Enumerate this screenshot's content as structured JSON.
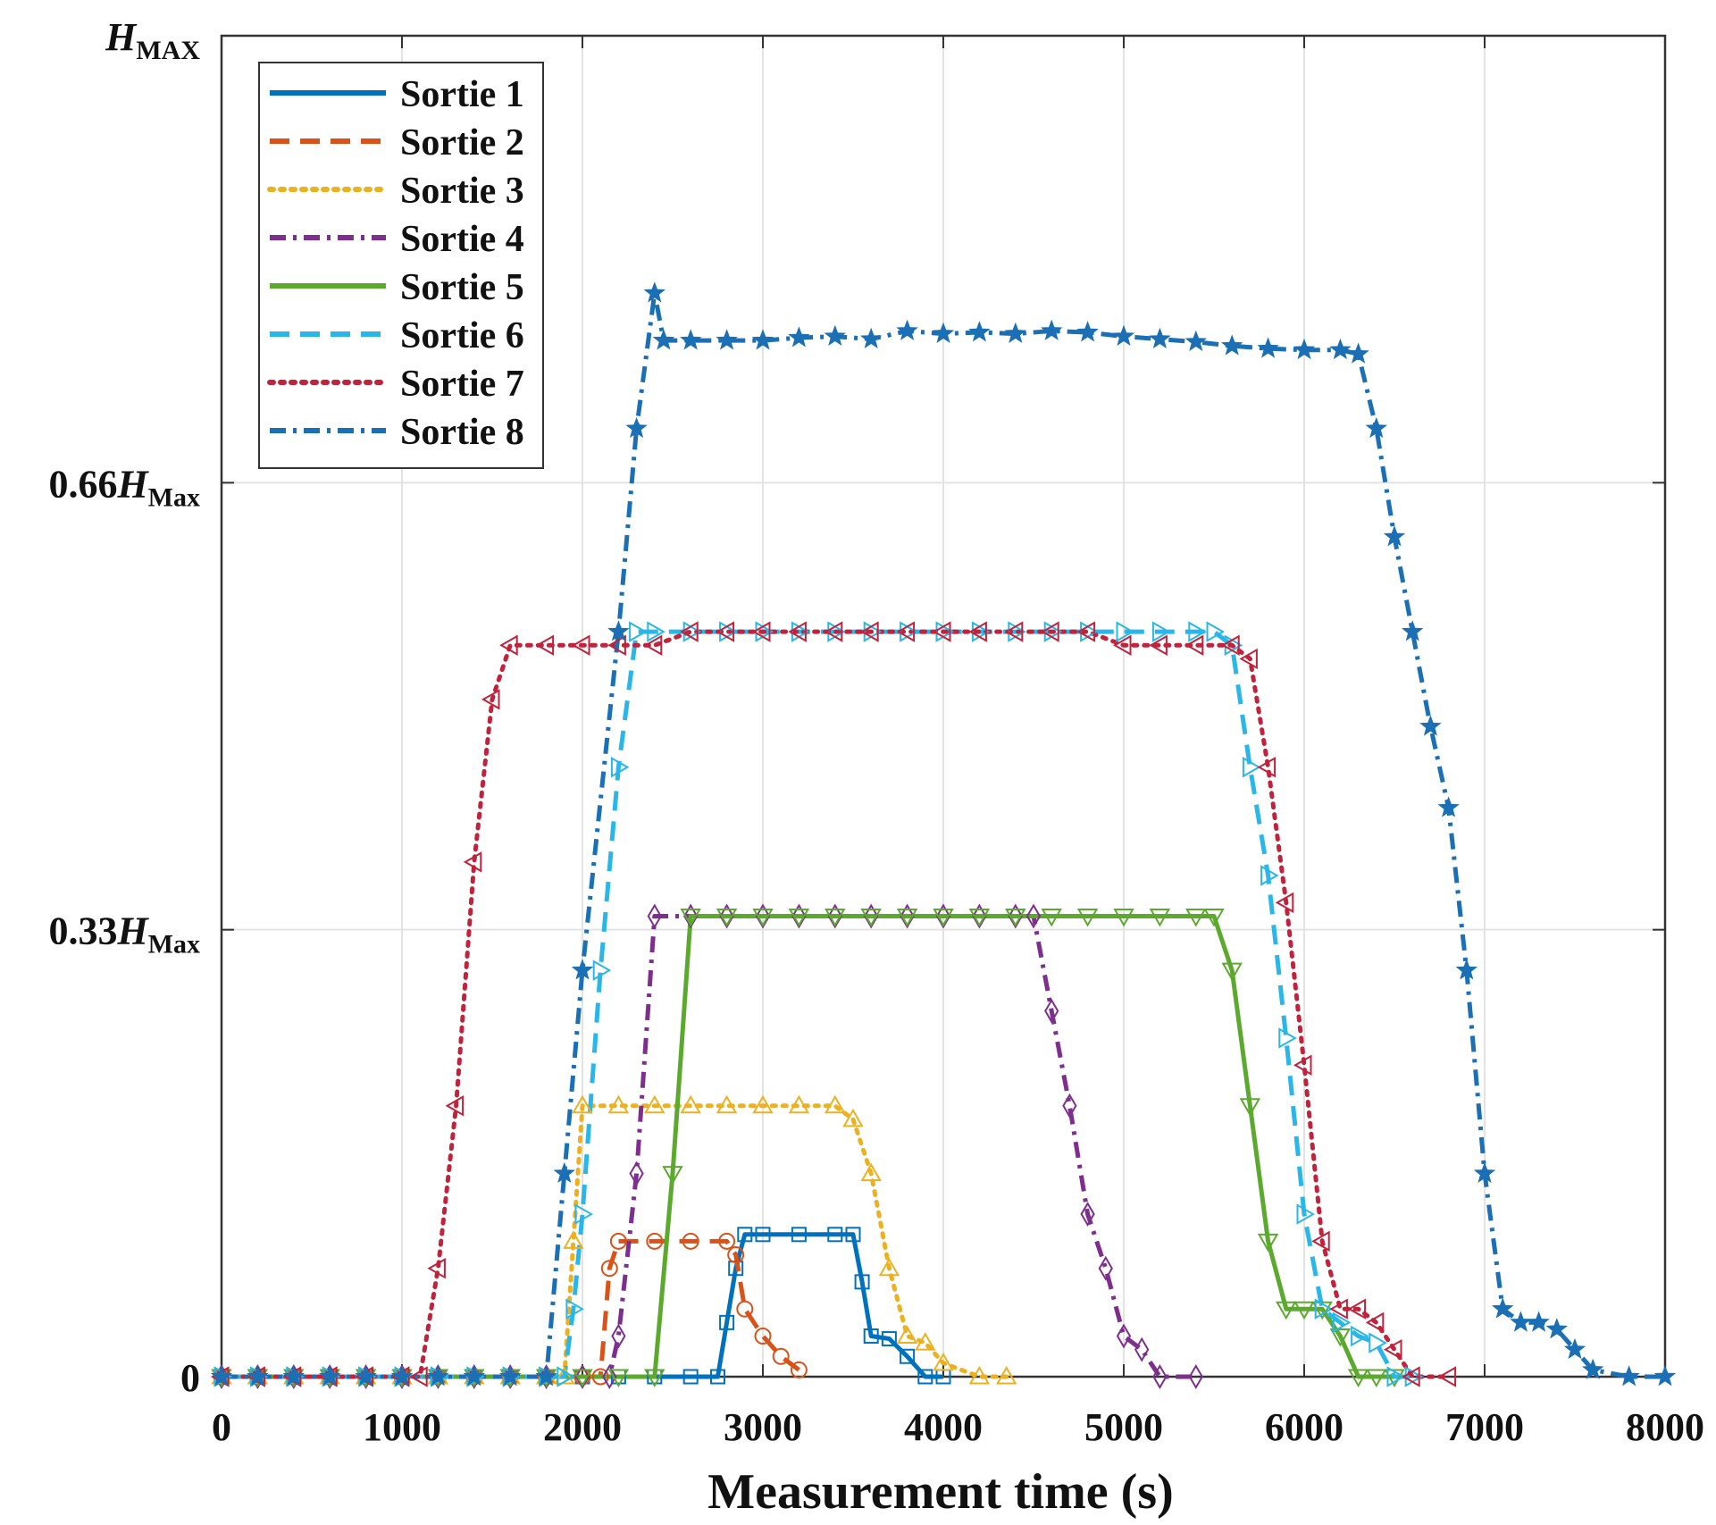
{
  "chart_data": {
    "type": "line",
    "title": "",
    "xlabel": "Measurement time (s)",
    "ylabel": "",
    "xlim": [
      0,
      8000
    ],
    "ylim": [
      0,
      0.99
    ],
    "grid": true,
    "legend_location": "top-left",
    "x_ticks": [
      0,
      1000,
      2000,
      3000,
      4000,
      5000,
      6000,
      7000,
      8000
    ],
    "x_tick_labels": [
      "0",
      "1000",
      "2000",
      "3000",
      "4000",
      "5000",
      "6000",
      "7000",
      "8000"
    ],
    "y_ticks": [
      {
        "value": 0,
        "prefix": "0",
        "symbol": "",
        "sub": ""
      },
      {
        "value": 0.33,
        "prefix": "0.33",
        "symbol": "H",
        "sub": "Max"
      },
      {
        "value": 0.66,
        "prefix": "0.66",
        "symbol": "H",
        "sub": "Max"
      },
      {
        "value": 0.99,
        "prefix": "",
        "symbol": "H",
        "sub": "MAX"
      }
    ],
    "series": [
      {
        "name": "Sortie 1",
        "color": "#0072BD",
        "dash": "solid",
        "marker": "square",
        "x": [
          0,
          200,
          400,
          600,
          800,
          1000,
          1200,
          1400,
          1600,
          1800,
          2000,
          2200,
          2400,
          2600,
          2750,
          2800,
          2850,
          2900,
          3000,
          3200,
          3400,
          3500,
          3550,
          3600,
          3700,
          3800,
          3900,
          4000
        ],
        "y": [
          0,
          0,
          0,
          0,
          0,
          0,
          0,
          0,
          0,
          0,
          0,
          0,
          0,
          0,
          0,
          0.04,
          0.08,
          0.105,
          0.105,
          0.105,
          0.105,
          0.105,
          0.07,
          0.03,
          0.028,
          0.015,
          0,
          0
        ]
      },
      {
        "name": "Sortie 2",
        "color": "#D95319",
        "dash": "dash",
        "marker": "circle",
        "x": [
          0,
          200,
          400,
          600,
          800,
          1000,
          1200,
          1400,
          1600,
          1800,
          2000,
          2100,
          2150,
          2200,
          2400,
          2600,
          2800,
          2850,
          2900,
          3000,
          3100,
          3200
        ],
        "y": [
          0,
          0,
          0,
          0,
          0,
          0,
          0,
          0,
          0,
          0,
          0,
          0,
          0.08,
          0.1,
          0.1,
          0.1,
          0.1,
          0.09,
          0.05,
          0.03,
          0.015,
          0.005
        ]
      },
      {
        "name": "Sortie 3",
        "color": "#EDB120",
        "dash": "dot",
        "marker": "triangle-up",
        "x": [
          0,
          200,
          400,
          600,
          800,
          1000,
          1200,
          1400,
          1600,
          1800,
          1900,
          1950,
          2000,
          2200,
          2400,
          2600,
          2800,
          3000,
          3200,
          3400,
          3500,
          3600,
          3700,
          3800,
          3900,
          4000,
          4200,
          4350
        ],
        "y": [
          0,
          0,
          0,
          0,
          0,
          0,
          0,
          0,
          0,
          0,
          0,
          0.1,
          0.2,
          0.2,
          0.2,
          0.2,
          0.2,
          0.2,
          0.2,
          0.2,
          0.19,
          0.15,
          0.08,
          0.03,
          0.025,
          0.01,
          0,
          0
        ]
      },
      {
        "name": "Sortie 4",
        "color": "#7E2F8E",
        "dash": "dashdot",
        "marker": "diamond",
        "x": [
          0,
          200,
          400,
          600,
          800,
          1000,
          1200,
          1400,
          1600,
          1800,
          2000,
          2150,
          2200,
          2300,
          2400,
          2600,
          2800,
          3000,
          3200,
          3400,
          3600,
          3800,
          4000,
          4200,
          4400,
          4500,
          4600,
          4700,
          4800,
          4900,
          5000,
          5100,
          5200,
          5400
        ],
        "y": [
          0,
          0,
          0,
          0,
          0,
          0,
          0,
          0,
          0,
          0,
          0,
          0,
          0.03,
          0.15,
          0.34,
          0.34,
          0.34,
          0.34,
          0.34,
          0.34,
          0.34,
          0.34,
          0.34,
          0.34,
          0.34,
          0.34,
          0.27,
          0.2,
          0.12,
          0.08,
          0.03,
          0.02,
          0,
          0
        ]
      },
      {
        "name": "Sortie 5",
        "color": "#5BAA2E",
        "dash": "solid",
        "marker": "triangle-down",
        "x": [
          0,
          200,
          400,
          600,
          800,
          1000,
          1200,
          1400,
          1600,
          1800,
          2000,
          2200,
          2400,
          2500,
          2600,
          2800,
          3000,
          3200,
          3400,
          3600,
          3800,
          4000,
          4200,
          4400,
          4600,
          4800,
          5000,
          5200,
          5400,
          5500,
          5600,
          5700,
          5800,
          5900,
          6000,
          6100,
          6200,
          6300,
          6400,
          6500
        ],
        "y": [
          0,
          0,
          0,
          0,
          0,
          0,
          0,
          0,
          0,
          0,
          0,
          0,
          0,
          0.15,
          0.34,
          0.34,
          0.34,
          0.34,
          0.34,
          0.34,
          0.34,
          0.34,
          0.34,
          0.34,
          0.34,
          0.34,
          0.34,
          0.34,
          0.34,
          0.34,
          0.3,
          0.2,
          0.1,
          0.05,
          0.05,
          0.05,
          0.03,
          0,
          0,
          0
        ]
      },
      {
        "name": "Sortie 6",
        "color": "#29B6E8",
        "dash": "dash",
        "marker": "triangle-right",
        "x": [
          0,
          200,
          400,
          600,
          800,
          1000,
          1200,
          1400,
          1600,
          1800,
          1900,
          1950,
          2000,
          2100,
          2200,
          2300,
          2400,
          2600,
          2800,
          3000,
          3200,
          3400,
          3600,
          3800,
          4000,
          4200,
          4400,
          4600,
          4800,
          5000,
          5200,
          5400,
          5500,
          5600,
          5700,
          5800,
          5900,
          6000,
          6100,
          6200,
          6300,
          6400,
          6500,
          6600
        ],
        "y": [
          0,
          0,
          0,
          0,
          0,
          0,
          0,
          0,
          0,
          0,
          0,
          0.05,
          0.12,
          0.3,
          0.45,
          0.55,
          0.55,
          0.55,
          0.55,
          0.55,
          0.55,
          0.55,
          0.55,
          0.55,
          0.55,
          0.55,
          0.55,
          0.55,
          0.55,
          0.55,
          0.55,
          0.55,
          0.55,
          0.54,
          0.45,
          0.37,
          0.25,
          0.12,
          0.05,
          0.04,
          0.03,
          0.025,
          0,
          0
        ]
      },
      {
        "name": "Sortie 7",
        "color": "#C0233B",
        "dash": "dot",
        "marker": "triangle-left",
        "x": [
          0,
          200,
          400,
          600,
          800,
          1000,
          1100,
          1200,
          1300,
          1400,
          1500,
          1600,
          1800,
          2000,
          2200,
          2400,
          2600,
          2800,
          3000,
          3200,
          3400,
          3600,
          3800,
          4000,
          4200,
          4400,
          4600,
          4800,
          5000,
          5200,
          5400,
          5600,
          5700,
          5800,
          5900,
          6000,
          6100,
          6200,
          6300,
          6400,
          6500,
          6600,
          6800
        ],
        "y": [
          0,
          0,
          0,
          0,
          0,
          0,
          0,
          0.08,
          0.2,
          0.38,
          0.5,
          0.54,
          0.54,
          0.54,
          0.54,
          0.54,
          0.55,
          0.55,
          0.55,
          0.55,
          0.55,
          0.55,
          0.55,
          0.55,
          0.55,
          0.55,
          0.55,
          0.55,
          0.54,
          0.54,
          0.54,
          0.54,
          0.53,
          0.45,
          0.35,
          0.23,
          0.1,
          0.05,
          0.05,
          0.04,
          0.02,
          0,
          0
        ]
      },
      {
        "name": "Sortie 8",
        "color": "#1A6FB5",
        "dash": "dashdot",
        "marker": "star",
        "x": [
          0,
          200,
          400,
          600,
          800,
          1000,
          1200,
          1400,
          1600,
          1800,
          1900,
          2000,
          2200,
          2300,
          2400,
          2450,
          2600,
          2800,
          3000,
          3200,
          3400,
          3600,
          3800,
          4000,
          4200,
          4400,
          4600,
          4800,
          5000,
          5200,
          5400,
          5600,
          5800,
          6000,
          6200,
          6300,
          6400,
          6500,
          6600,
          6700,
          6800,
          6900,
          7000,
          7100,
          7200,
          7300,
          7400,
          7500,
          7600,
          7800,
          8000
        ],
        "y": [
          0,
          0,
          0,
          0,
          0,
          0,
          0,
          0,
          0,
          0,
          0.15,
          0.3,
          0.55,
          0.7,
          0.8,
          0.765,
          0.765,
          0.765,
          0.765,
          0.767,
          0.768,
          0.766,
          0.772,
          0.77,
          0.771,
          0.77,
          0.772,
          0.771,
          0.768,
          0.766,
          0.764,
          0.761,
          0.759,
          0.758,
          0.758,
          0.755,
          0.7,
          0.62,
          0.55,
          0.48,
          0.42,
          0.3,
          0.15,
          0.05,
          0.04,
          0.04,
          0.035,
          0.02,
          0.005,
          0,
          0
        ]
      }
    ]
  }
}
